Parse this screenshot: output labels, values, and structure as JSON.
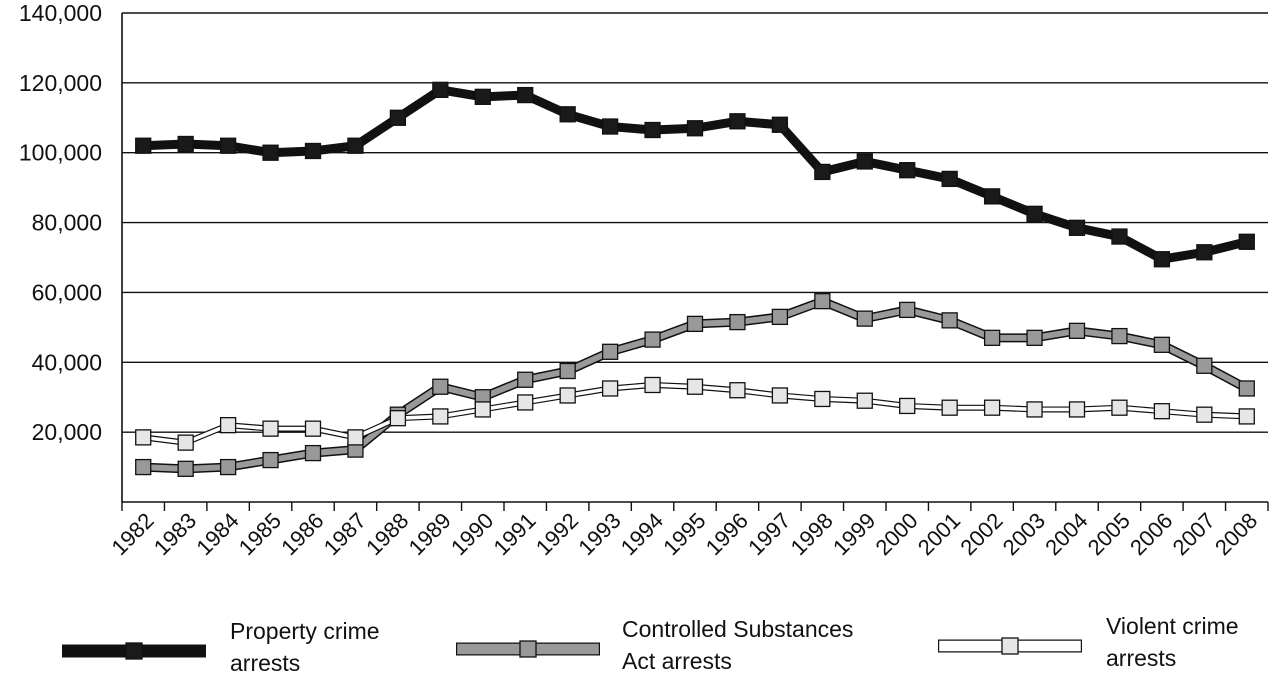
{
  "chart_data": {
    "type": "line",
    "title": "",
    "xlabel": "",
    "ylabel": "",
    "ylim": [
      0,
      140000
    ],
    "y_ticks": [
      "20,000",
      "40,000",
      "60,000",
      "80,000",
      "100,000",
      "120,000",
      "140,000"
    ],
    "y_tick_values": [
      20000,
      40000,
      60000,
      80000,
      100000,
      120000,
      140000
    ],
    "categories": [
      "1982",
      "1983",
      "1984",
      "1985",
      "1986",
      "1987",
      "1988",
      "1989",
      "1990",
      "1991",
      "1992",
      "1993",
      "1994",
      "1995",
      "1996",
      "1997",
      "1998",
      "1999",
      "2000",
      "2001",
      "2002",
      "2003",
      "2004",
      "2005",
      "2006",
      "2007",
      "2008"
    ],
    "grid": "horizontal",
    "legend_position": "bottom",
    "series": [
      {
        "name_lines": [
          "Property crime",
          "arrests"
        ],
        "color": "#1a1a1a",
        "marker_color": "#1a1a1a",
        "values": [
          102000,
          102500,
          102000,
          100000,
          100500,
          102000,
          110000,
          118000,
          116000,
          116500,
          111000,
          107500,
          106500,
          107000,
          109000,
          108000,
          94500,
          97500,
          95000,
          92500,
          87500,
          82500,
          78500,
          76000,
          69500,
          71500,
          74500
        ]
      },
      {
        "name_lines": [
          "Controlled Substances",
          "Act arrests"
        ],
        "color": "#999999",
        "marker_color": "#999999",
        "values": [
          10000,
          9500,
          10000,
          12000,
          14000,
          15000,
          25000,
          33000,
          30000,
          35000,
          37500,
          43000,
          46500,
          51000,
          51500,
          53000,
          57500,
          52500,
          55000,
          52000,
          47000,
          47000,
          49000,
          47500,
          45000,
          39000,
          32500
        ]
      },
      {
        "name_lines": [
          "Violent crime",
          "arrests"
        ],
        "color": "#ffffff",
        "marker_color": "#e6e6e6",
        "values": [
          18500,
          17000,
          22000,
          21000,
          21000,
          18500,
          24000,
          24500,
          26500,
          28500,
          30500,
          32500,
          33500,
          33000,
          32000,
          30500,
          29500,
          29000,
          27500,
          27000,
          27000,
          26500,
          26500,
          27000,
          26000,
          25000,
          24500
        ]
      }
    ]
  }
}
